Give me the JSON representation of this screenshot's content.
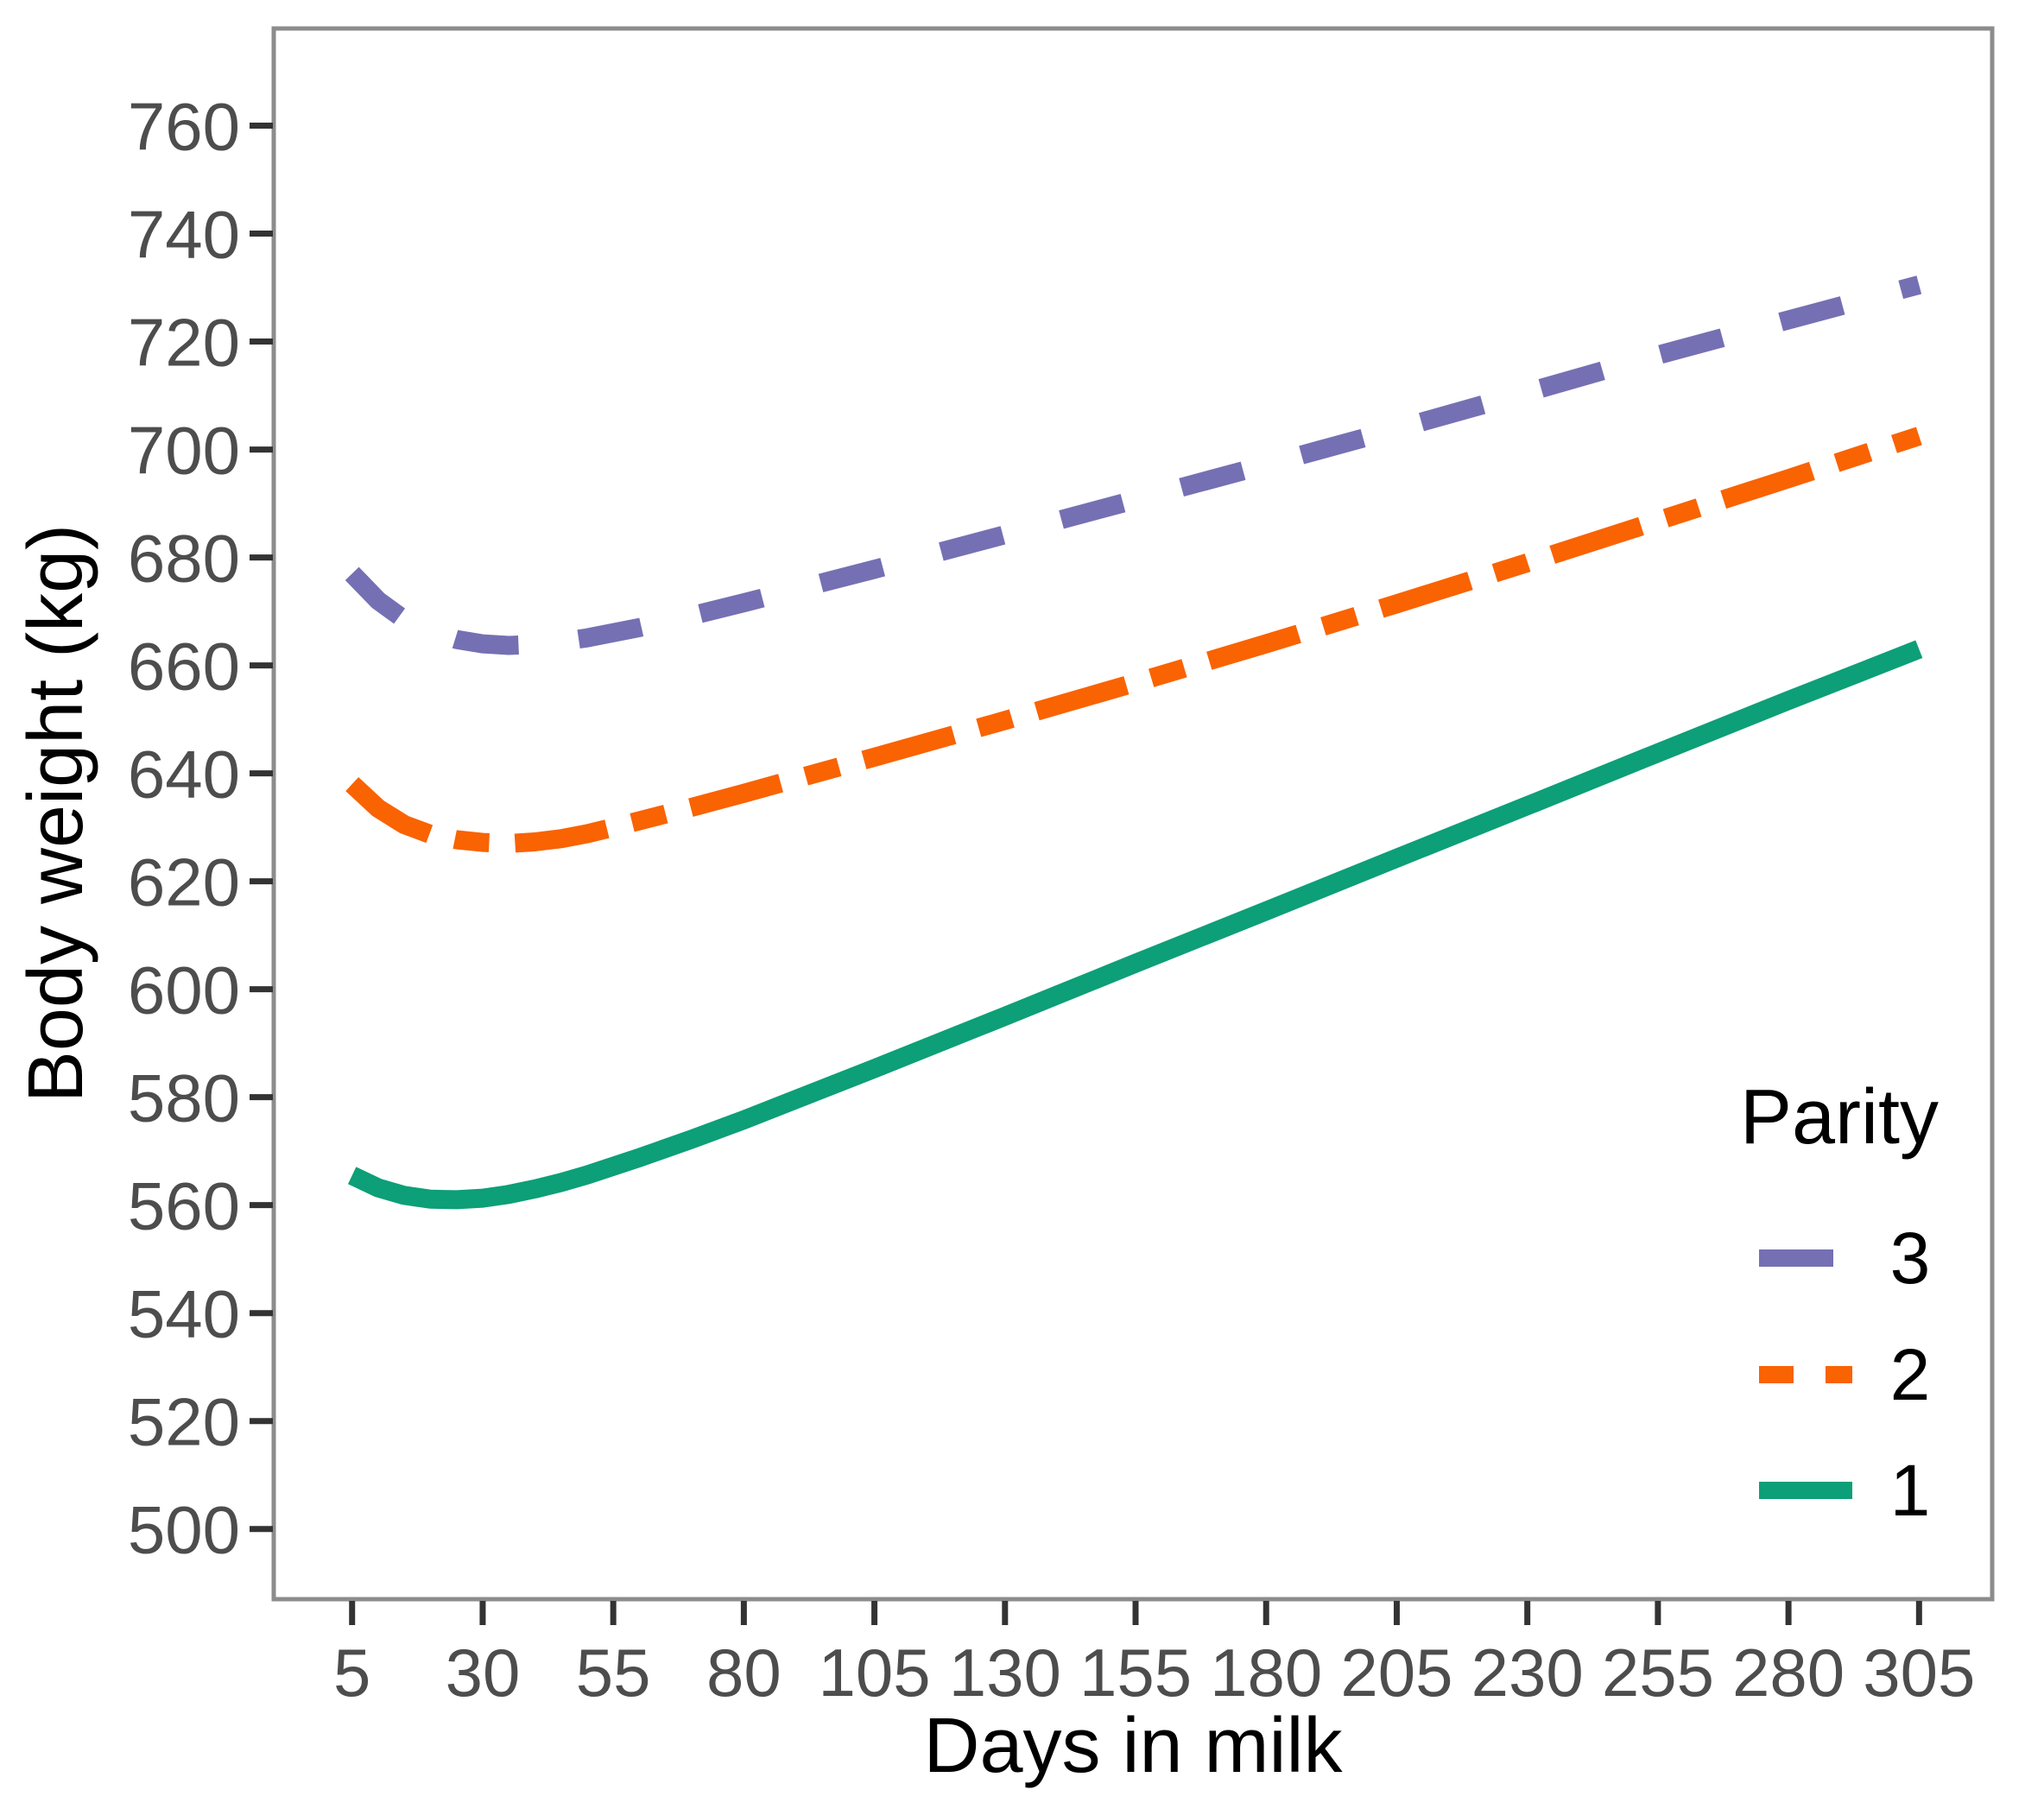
{
  "chart_data": {
    "type": "line",
    "title": "",
    "xlabel": "Days in milk",
    "ylabel": "Body weight (kg)",
    "grid": false,
    "background": "#ffffff",
    "panel_border_color": "#8C8C8C",
    "tick_mark_color": "#333333",
    "tick_label_color": "#4D4D4D",
    "xlim": [
      -10,
      319
    ],
    "ylim": [
      487,
      778
    ],
    "x_ticks": [
      5,
      30,
      55,
      80,
      105,
      130,
      155,
      180,
      205,
      230,
      255,
      280,
      305
    ],
    "x_tick_labels": [
      "5",
      "30",
      "55",
      "80",
      "105",
      "130",
      "155",
      "180",
      "205",
      "230",
      "255",
      "280",
      "305"
    ],
    "y_ticks": [
      760,
      740,
      720,
      700,
      680,
      660,
      640,
      620,
      600,
      580,
      560,
      540,
      520,
      500
    ],
    "y_tick_labels": [
      "760",
      "740",
      "720",
      "700",
      "680",
      "660",
      "640",
      "620",
      "600",
      "580",
      "560",
      "540",
      "520",
      "500"
    ],
    "legend": {
      "title": "Parity",
      "position": "inside-right",
      "entries": [
        {
          "label": "3",
          "color": "#7570B3",
          "linetype": "longdash"
        },
        {
          "label": "2",
          "color": "#F96302",
          "linetype": "twodash"
        },
        {
          "label": "1",
          "color": "#0D9F77",
          "linetype": "solid"
        }
      ]
    },
    "series": [
      {
        "name": "3",
        "color": "#7570B3",
        "linetype": "longdash",
        "points": [
          [
            5,
            677
          ],
          [
            10,
            672
          ],
          [
            15,
            668.5
          ],
          [
            20,
            666.3
          ],
          [
            25,
            664.8
          ],
          [
            30,
            664
          ],
          [
            35,
            663.7
          ],
          [
            40,
            663.9
          ],
          [
            45,
            664.4
          ],
          [
            50,
            665.1
          ],
          [
            60,
            667
          ],
          [
            70,
            669.2
          ],
          [
            80,
            671.6
          ],
          [
            105,
            677.8
          ],
          [
            130,
            684.2
          ],
          [
            155,
            690.7
          ],
          [
            180,
            697.2
          ],
          [
            205,
            703.8
          ],
          [
            230,
            710.6
          ],
          [
            255,
            717.5
          ],
          [
            280,
            724
          ],
          [
            305,
            730.5
          ]
        ]
      },
      {
        "name": "2",
        "color": "#F96302",
        "linetype": "twodash",
        "points": [
          [
            5,
            638
          ],
          [
            10,
            633.5
          ],
          [
            15,
            630.5
          ],
          [
            20,
            628.7
          ],
          [
            25,
            627.7
          ],
          [
            30,
            627.2
          ],
          [
            35,
            627
          ],
          [
            40,
            627.3
          ],
          [
            45,
            627.9
          ],
          [
            50,
            628.8
          ],
          [
            60,
            631.2
          ],
          [
            70,
            633.7
          ],
          [
            80,
            636.3
          ],
          [
            105,
            643
          ],
          [
            130,
            649.8
          ],
          [
            155,
            656.8
          ],
          [
            180,
            664
          ],
          [
            205,
            671.4
          ],
          [
            230,
            679
          ],
          [
            255,
            686.8
          ],
          [
            280,
            694.6
          ],
          [
            305,
            702.5
          ]
        ]
      },
      {
        "name": "1",
        "color": "#0D9F77",
        "linetype": "solid",
        "points": [
          [
            5,
            565.5
          ],
          [
            10,
            563.2
          ],
          [
            15,
            561.8
          ],
          [
            20,
            561.1
          ],
          [
            25,
            561
          ],
          [
            30,
            561.3
          ],
          [
            35,
            562
          ],
          [
            40,
            563
          ],
          [
            45,
            564.2
          ],
          [
            50,
            565.6
          ],
          [
            60,
            568.8
          ],
          [
            70,
            572.2
          ],
          [
            80,
            575.8
          ],
          [
            105,
            585.3
          ],
          [
            130,
            595
          ],
          [
            155,
            604.8
          ],
          [
            180,
            614.5
          ],
          [
            205,
            624.3
          ],
          [
            230,
            634
          ],
          [
            255,
            643.8
          ],
          [
            280,
            653.5
          ],
          [
            305,
            663
          ]
        ]
      }
    ]
  }
}
